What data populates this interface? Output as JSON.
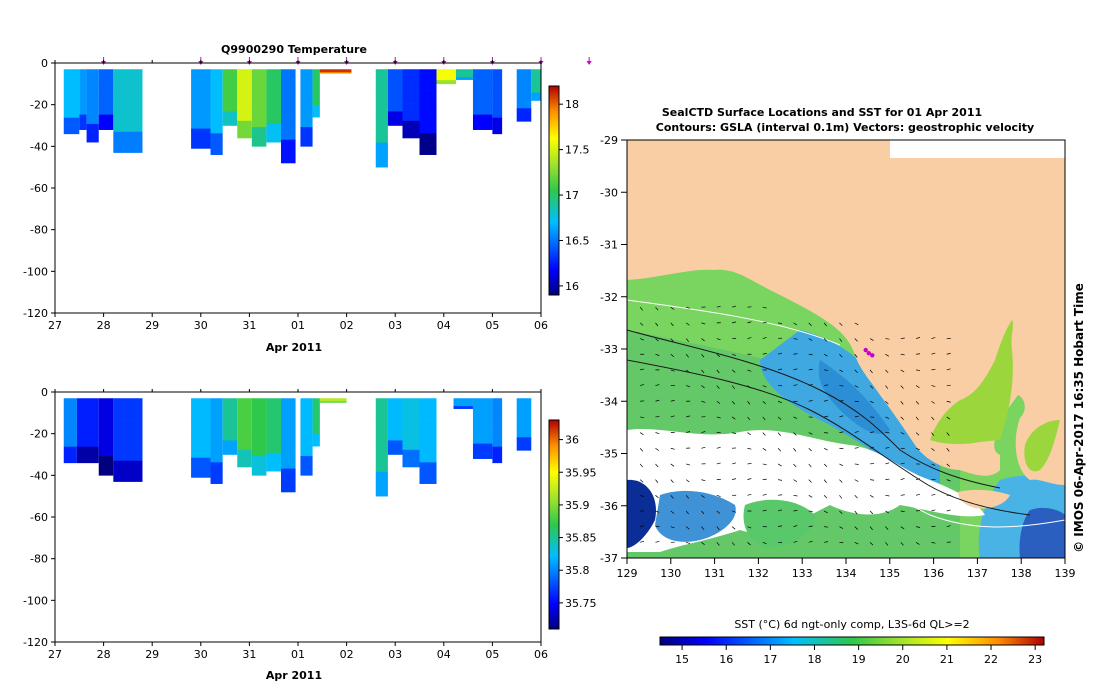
{
  "chart_data": [
    {
      "type": "heatmap",
      "title": "Q9900290  Temperature",
      "xlabel": "Apr 2011",
      "x_ticks": [
        "27",
        "28",
        "29",
        "30",
        "31",
        "01",
        "02",
        "03",
        "04",
        "05",
        "06"
      ],
      "y_ticks": [
        "0",
        "-20",
        "-40",
        "-60",
        "-80",
        "-100",
        "-120"
      ],
      "ylim": [
        -120,
        0
      ],
      "colorbar_ticks": [
        "16",
        "16.5",
        "17",
        "17.5",
        "18"
      ],
      "colorbar_range": [
        15.9,
        18.2
      ],
      "profile_markers_day": [
        1,
        3,
        4,
        5,
        6,
        7,
        8,
        9,
        10,
        10.99
      ],
      "profiles": [
        {
          "t0": 0.18,
          "t1": 0.5,
          "depth": -34,
          "value": 16.7
        },
        {
          "t0": 0.5,
          "t1": 0.65,
          "depth": -32,
          "value": 16.6
        },
        {
          "t0": 0.65,
          "t1": 0.9,
          "depth": -38,
          "value": 16.55
        },
        {
          "t0": 0.9,
          "t1": 1.2,
          "depth": -32,
          "value": 16.45
        },
        {
          "t0": 1.2,
          "t1": 1.8,
          "depth": -43,
          "value": 16.8
        },
        {
          "t0": 2.8,
          "t1": 3.2,
          "depth": -41,
          "value": 16.6
        },
        {
          "t0": 3.2,
          "t1": 3.45,
          "depth": -44,
          "value": 16.7
        },
        {
          "t0": 3.45,
          "t1": 3.75,
          "depth": -30,
          "value": 17.1
        },
        {
          "t0": 3.75,
          "t1": 4.05,
          "depth": -36,
          "value": 17.5
        },
        {
          "t0": 4.05,
          "t1": 4.35,
          "depth": -40,
          "value": 17.2
        },
        {
          "t0": 4.35,
          "t1": 4.65,
          "depth": -38,
          "value": 17.0
        },
        {
          "t0": 4.65,
          "t1": 4.95,
          "depth": -48,
          "value": 16.5
        },
        {
          "t0": 5.05,
          "t1": 5.3,
          "depth": -40,
          "value": 16.6
        },
        {
          "t0": 5.3,
          "t1": 5.45,
          "depth": -26,
          "value": 17.0
        },
        {
          "t0": 5.45,
          "t1": 6.1,
          "depth": -5,
          "value": 18.1
        },
        {
          "t0": 6.6,
          "t1": 6.85,
          "depth": -50,
          "value": 16.9
        },
        {
          "t0": 6.85,
          "t1": 7.15,
          "depth": -30,
          "value": 16.4
        },
        {
          "t0": 7.15,
          "t1": 7.5,
          "depth": -36,
          "value": 16.3
        },
        {
          "t0": 7.5,
          "t1": 7.85,
          "depth": -44,
          "value": 16.2
        },
        {
          "t0": 7.85,
          "t1": 8.25,
          "depth": -10,
          "value": 17.6
        },
        {
          "t0": 8.25,
          "t1": 8.6,
          "depth": -8,
          "value": 16.9
        },
        {
          "t0": 8.6,
          "t1": 9.0,
          "depth": -32,
          "value": 16.45
        },
        {
          "t0": 9.0,
          "t1": 9.2,
          "depth": -34,
          "value": 16.4
        },
        {
          "t0": 9.5,
          "t1": 9.8,
          "depth": -28,
          "value": 16.55
        },
        {
          "t0": 9.8,
          "t1": 10.0,
          "depth": -18,
          "value": 16.9
        }
      ]
    },
    {
      "type": "heatmap",
      "title": "",
      "xlabel": "Apr 2011",
      "x_ticks": [
        "27",
        "28",
        "29",
        "30",
        "31",
        "01",
        "02",
        "03",
        "04",
        "05",
        "06"
      ],
      "y_ticks": [
        "0",
        "-20",
        "-40",
        "-60",
        "-80",
        "-100",
        "-120"
      ],
      "ylim": [
        -120,
        0
      ],
      "colorbar_ticks": [
        "35.75",
        "35.8",
        "35.85",
        "35.9",
        "35.95",
        "36"
      ],
      "colorbar_range": [
        35.71,
        36.03
      ],
      "profiles": [
        {
          "t0": 0.18,
          "t1": 0.45,
          "depth": -34,
          "value": 35.8
        },
        {
          "t0": 0.45,
          "t1": 0.9,
          "depth": -34,
          "value": 35.76
        },
        {
          "t0": 0.9,
          "t1": 1.2,
          "depth": -40,
          "value": 35.74
        },
        {
          "t0": 1.2,
          "t1": 1.8,
          "depth": -43,
          "value": 35.77
        },
        {
          "t0": 2.8,
          "t1": 3.2,
          "depth": -41,
          "value": 35.82
        },
        {
          "t0": 3.2,
          "t1": 3.45,
          "depth": -44,
          "value": 35.81
        },
        {
          "t0": 3.45,
          "t1": 3.75,
          "depth": -30,
          "value": 35.85
        },
        {
          "t0": 3.75,
          "t1": 4.05,
          "depth": -36,
          "value": 35.88
        },
        {
          "t0": 4.05,
          "t1": 4.35,
          "depth": -40,
          "value": 35.87
        },
        {
          "t0": 4.35,
          "t1": 4.65,
          "depth": -38,
          "value": 35.86
        },
        {
          "t0": 4.65,
          "t1": 4.95,
          "depth": -48,
          "value": 35.81
        },
        {
          "t0": 5.05,
          "t1": 5.3,
          "depth": -40,
          "value": 35.82
        },
        {
          "t0": 5.3,
          "t1": 5.45,
          "depth": -26,
          "value": 35.86
        },
        {
          "t0": 5.45,
          "t1": 6.0,
          "depth": -5,
          "value": 35.92
        },
        {
          "t0": 6.6,
          "t1": 6.85,
          "depth": -50,
          "value": 35.85
        },
        {
          "t0": 6.85,
          "t1": 7.15,
          "depth": -30,
          "value": 35.82
        },
        {
          "t0": 7.15,
          "t1": 7.5,
          "depth": -36,
          "value": 35.83
        },
        {
          "t0": 7.5,
          "t1": 7.85,
          "depth": -44,
          "value": 35.82
        },
        {
          "t0": 8.2,
          "t1": 8.6,
          "depth": -8,
          "value": 35.81
        },
        {
          "t0": 8.6,
          "t1": 9.0,
          "depth": -32,
          "value": 35.81
        },
        {
          "t0": 9.0,
          "t1": 9.2,
          "depth": -34,
          "value": 35.8
        },
        {
          "t0": 9.5,
          "t1": 9.8,
          "depth": -28,
          "value": 35.81
        }
      ]
    },
    {
      "type": "heatmap",
      "title": "SealCTD Surface Locations and SST for 01 Apr 2011",
      "subtitle": "Contours: GSLA (interval 0.1m) Vectors: geostrophic velocity",
      "x_ticks": [
        "129",
        "130",
        "131",
        "132",
        "133",
        "134",
        "135",
        "136",
        "137",
        "138",
        "139"
      ],
      "y_ticks": [
        "-29",
        "-30",
        "-31",
        "-32",
        "-33",
        "-34",
        "-35",
        "-36",
        "-37"
      ],
      "xlim": [
        129,
        139
      ],
      "ylim": [
        -37,
        -29
      ],
      "colorbar_label": "SST (°C) 6d ngt-only comp, L3S-6d QL>=2",
      "colorbar_ticks": [
        "15",
        "16",
        "17",
        "18",
        "19",
        "20",
        "21",
        "22",
        "23"
      ],
      "colorbar_range": [
        14.5,
        23.2
      ],
      "side_label": "© IMOS 06-Apr-2017 16:35 Hobart Time",
      "seal_track": [
        [
          134.45,
          -33.02
        ],
        [
          134.52,
          -33.08
        ],
        [
          134.6,
          -33.12
        ]
      ]
    }
  ],
  "colors": {
    "land": "#f9cea4",
    "seal_marker": "#cc00cc",
    "missing": "#ffffff"
  }
}
